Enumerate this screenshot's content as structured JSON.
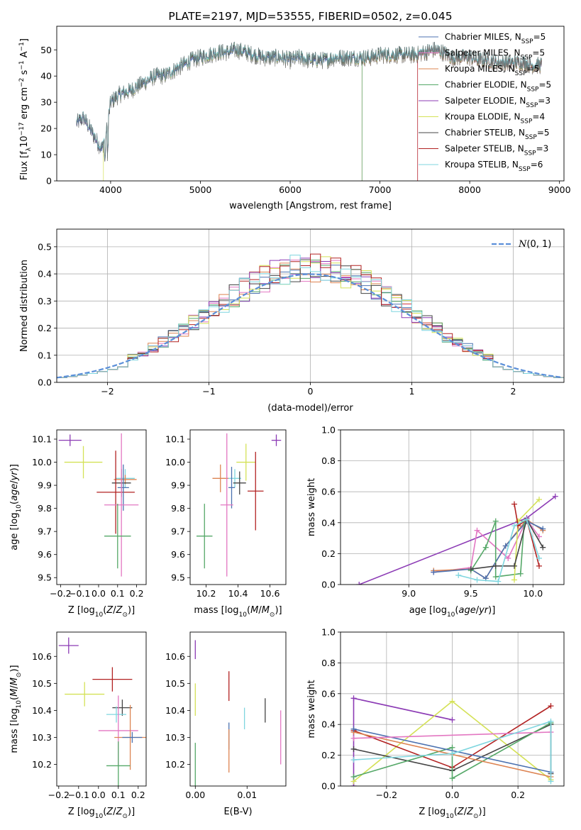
{
  "colors": {
    "Chabrier MILES": "#4c72b0",
    "Salpeter MILES": "#e377c2",
    "Kroupa MILES": "#dd8452",
    "Chabrier ELODIE": "#55a868",
    "Salpeter ELODIE": "#8c3bb5",
    "Kroupa ELODIE": "#d4e157",
    "Chabrier STELIB": "#444444",
    "Salpeter STELIB": "#b22222",
    "Kroupa STELIB": "#7fd6df",
    "normal": "#5b8fd9"
  },
  "chart_data": [
    {
      "id": "spectrum",
      "type": "line",
      "title": "PLATE=2197, MJD=53555, FIBERID=0502, z=0.045",
      "xlabel": "wavelength [Angstrom, rest frame]",
      "ylabel": "Flux [f_λ10^-17 erg cm^-2 s^-1 A^-1]",
      "xlim": [
        3400,
        9050
      ],
      "ylim": [
        0,
        59
      ],
      "xticks": [
        4000,
        5000,
        6000,
        7000,
        8000,
        9000
      ],
      "yticks": [
        0,
        10,
        20,
        30,
        40,
        50
      ],
      "x": [
        3620,
        3700,
        3800,
        3900,
        3960,
        4000,
        4100,
        4200,
        4300,
        4400,
        4500,
        4600,
        4700,
        4800,
        4900,
        5000,
        5100,
        5200,
        5300,
        5400,
        5500,
        5600,
        5700,
        5800,
        5900,
        6000,
        6100,
        6200,
        6300,
        6400,
        6500,
        6600,
        6700,
        6800,
        6900,
        7000,
        7100,
        7200,
        7300,
        7400,
        7500,
        7600,
        7700,
        7800,
        7900,
        8000,
        8100,
        8200,
        8300,
        8400,
        8500,
        8600,
        8700,
        8800
      ],
      "series": [
        {
          "name": "Chabrier MILES, N_SSP=5",
          "legend_prefix": "Chabrier MILES, N",
          "legend_sub": "SSP",
          "legend_suffix": "=5"
        },
        {
          "name": "Salpeter MILES, N_SSP=5",
          "legend_prefix": "Salpeter MILES, N",
          "legend_sub": "SSP",
          "legend_suffix": "=5"
        },
        {
          "name": "Kroupa MILES, N_SSP=5",
          "legend_prefix": "Kroupa MILES, N",
          "legend_sub": "SSP",
          "legend_suffix": "=5"
        },
        {
          "name": "Chabrier ELODIE, N_SSP=5",
          "legend_prefix": "Chabrier ELODIE, N",
          "legend_sub": "SSP",
          "legend_suffix": "=5"
        },
        {
          "name": "Salpeter ELODIE, N_SSP=3",
          "legend_prefix": "Salpeter ELODIE, N",
          "legend_sub": "SSP",
          "legend_suffix": "=3"
        },
        {
          "name": "Kroupa ELODIE, N_SSP=4",
          "legend_prefix": "Kroupa ELODIE, N",
          "legend_sub": "SSP",
          "legend_suffix": "=4"
        },
        {
          "name": "Chabrier STELIB, N_SSP=5",
          "legend_prefix": "Chabrier STELIB, N",
          "legend_sub": "SSP",
          "legend_suffix": "=5"
        },
        {
          "name": "Salpeter STELIB, N_SSP=3",
          "legend_prefix": "Salpeter STELIB, N",
          "legend_sub": "SSP",
          "legend_suffix": "=3"
        },
        {
          "name": "Kroupa STELIB, N_SSP=6",
          "legend_prefix": "Kroupa STELIB, N",
          "legend_sub": "SSP",
          "legend_suffix": "=6"
        }
      ],
      "flux_envelope": [
        22,
        24,
        18,
        12,
        20,
        30,
        33,
        34,
        36,
        38,
        40,
        40,
        42,
        44,
        46,
        47,
        48,
        49,
        49,
        50,
        49,
        48,
        47,
        47,
        47,
        46,
        47,
        46,
        46,
        46,
        47,
        47,
        47,
        47,
        47,
        48,
        48,
        48,
        48,
        48,
        49,
        50,
        49,
        47,
        47,
        47,
        46,
        46,
        45,
        45,
        45,
        45,
        44,
        44
      ],
      "model_start": {
        "Kroupa ELODIE": 3920,
        "Chabrier ELODIE": 6800,
        "Kroupa MILES": 6800,
        "Salpeter MILES": 7420,
        "Salpeter STELIB": 7420
      },
      "data_start": 3620,
      "data_end": 8800
    },
    {
      "id": "residuals",
      "type": "histogram",
      "xlabel": "(data-model)/error",
      "ylabel": "Normed distribution",
      "xlim": [
        -2.5,
        2.5
      ],
      "ylim": [
        0,
        0.565
      ],
      "xticks": [
        -2,
        -1,
        0,
        1,
        2
      ],
      "yticks": [
        0.0,
        0.1,
        0.2,
        0.3,
        0.4,
        0.5
      ],
      "grid": true,
      "bin_width": 0.1,
      "legend": "N(0,1)",
      "legend_text": "(0, 1)",
      "legend_position": "upper right"
    },
    {
      "id": "age_vs_Z",
      "type": "errorbar",
      "xlabel": "Z [log10(Z/Z_sun)]",
      "ylabel": "age [log10(age/yr)]",
      "xlim": [
        -0.22,
        0.25
      ],
      "ylim": [
        9.47,
        10.14
      ],
      "xticks": [
        -0.2,
        -0.1,
        0.0,
        0.1,
        0.2
      ],
      "yticks": [
        9.5,
        9.6,
        9.7,
        9.8,
        9.9,
        10.0,
        10.1
      ],
      "points": [
        {
          "s": "Salpeter ELODIE",
          "x": -0.15,
          "y": 10.095,
          "xe": 0.06,
          "ye": 0.025
        },
        {
          "s": "Kroupa ELODIE",
          "x": -0.08,
          "y": 10.0,
          "xe": 0.1,
          "ye": 0.07
        },
        {
          "s": "Kroupa STELIB",
          "x": 0.14,
          "y": 9.93,
          "xe": 0.05,
          "ye": 0.04
        },
        {
          "s": "Kroupa MILES",
          "x": 0.14,
          "y": 9.925,
          "xe": 0.06,
          "ye": 0.02
        },
        {
          "s": "Chabrier STELIB",
          "x": 0.12,
          "y": 9.91,
          "xe": 0.05,
          "ye": 0.06
        },
        {
          "s": "Salpeter STELIB",
          "x": 0.09,
          "y": 9.87,
          "xe": 0.1,
          "ye": 0.18
        },
        {
          "s": "Chabrier MILES",
          "x": 0.13,
          "y": 9.89,
          "xe": 0.03,
          "ye": 0.1
        },
        {
          "s": "Salpeter MILES",
          "x": 0.12,
          "y": 9.815,
          "xe": 0.09,
          "ye": 0.31
        },
        {
          "s": "Chabrier ELODIE",
          "x": 0.1,
          "y": 9.68,
          "xe": 0.07,
          "ye": 0.14
        }
      ]
    },
    {
      "id": "age_vs_mass",
      "type": "errorbar",
      "xlabel": "mass [log10(M/M_sun)]",
      "ylabel": "",
      "xlim": [
        10.1,
        10.7
      ],
      "ylim": [
        9.47,
        10.14
      ],
      "xticks": [
        10.2,
        10.4,
        10.6
      ],
      "yticks": [
        9.5,
        9.6,
        9.7,
        9.8,
        9.9,
        10.0,
        10.1
      ],
      "points": [
        {
          "s": "Salpeter ELODIE",
          "x": 10.64,
          "y": 10.095,
          "xe": 0.03,
          "ye": 0.025
        },
        {
          "s": "Kroupa ELODIE",
          "x": 10.45,
          "y": 10.0,
          "xe": 0.06,
          "ye": 0.08
        },
        {
          "s": "Kroupa STELIB",
          "x": 10.38,
          "y": 9.93,
          "xe": 0.04,
          "ye": 0.04
        },
        {
          "s": "Kroupa MILES",
          "x": 10.29,
          "y": 9.93,
          "xe": 0.05,
          "ye": 0.06
        },
        {
          "s": "Chabrier STELIB",
          "x": 10.41,
          "y": 9.91,
          "xe": 0.04,
          "ye": 0.05
        },
        {
          "s": "Salpeter STELIB",
          "x": 10.51,
          "y": 9.875,
          "xe": 0.05,
          "ye": 0.17
        },
        {
          "s": "Chabrier MILES",
          "x": 10.36,
          "y": 9.89,
          "xe": 0.02,
          "ye": 0.09
        },
        {
          "s": "Salpeter MILES",
          "x": 10.33,
          "y": 9.815,
          "xe": 0.04,
          "ye": 0.31
        },
        {
          "s": "Chabrier ELODIE",
          "x": 10.19,
          "y": 9.68,
          "xe": 0.05,
          "ye": 0.14
        }
      ]
    },
    {
      "id": "weight_vs_age",
      "type": "line",
      "xlabel": "age [log10(age/yr)]",
      "ylabel": "mass weight",
      "xlim": [
        8.45,
        10.25
      ],
      "ylim": [
        0,
        1.0
      ],
      "xticks": [
        9.0,
        9.5,
        10.0
      ],
      "yticks": [
        0.0,
        0.2,
        0.4,
        0.6,
        0.8,
        1.0
      ],
      "grid": true,
      "series": [
        {
          "s": "Salpeter ELODIE",
          "x": [
            8.6,
            9.95,
            10.18
          ],
          "y": [
            0.0,
            0.43,
            0.57
          ]
        },
        {
          "s": "Salpeter MILES",
          "x": [
            9.2,
            9.5,
            9.55,
            9.8,
            9.95,
            10.05
          ],
          "y": [
            0.08,
            0.11,
            0.35,
            0.17,
            0.42,
            0.31
          ]
        },
        {
          "s": "Kroupa MILES",
          "x": [
            9.2,
            9.5,
            9.62,
            9.78,
            9.95,
            10.08
          ],
          "y": [
            0.09,
            0.1,
            0.04,
            0.25,
            0.42,
            0.35
          ]
        },
        {
          "s": "Chabrier MILES",
          "x": [
            9.2,
            9.5,
            9.62,
            9.78,
            9.95,
            10.08
          ],
          "y": [
            0.08,
            0.1,
            0.04,
            0.25,
            0.41,
            0.36
          ]
        },
        {
          "s": "Chabrier ELODIE",
          "x": [
            9.5,
            9.62,
            9.7,
            9.7,
            9.9,
            9.93
          ],
          "y": [
            0.09,
            0.24,
            0.41,
            0.05,
            0.07,
            0.41
          ]
        },
        {
          "s": "Kroupa ELODIE",
          "x": [
            9.85,
            9.88,
            10.05
          ],
          "y": [
            0.03,
            0.41,
            0.55
          ]
        },
        {
          "s": "Chabrier STELIB",
          "x": [
            9.5,
            9.7,
            9.85,
            9.95,
            10.08
          ],
          "y": [
            0.1,
            0.12,
            0.12,
            0.42,
            0.24
          ]
        },
        {
          "s": "Salpeter STELIB",
          "x": [
            9.85,
            9.88,
            9.95,
            10.05
          ],
          "y": [
            0.52,
            0.38,
            0.42,
            0.12
          ]
        },
        {
          "s": "Kroupa STELIB",
          "x": [
            9.4,
            9.55,
            9.72,
            9.85,
            9.95,
            10.05
          ],
          "y": [
            0.06,
            0.03,
            0.02,
            0.38,
            0.42,
            0.17
          ]
        }
      ]
    },
    {
      "id": "mass_vs_Z",
      "type": "errorbar",
      "xlabel": "Z [log10(Z/Z_sun)]",
      "ylabel": "mass [log10(M/M_sun)]",
      "xlim": [
        -0.21,
        0.24
      ],
      "ylim": [
        10.12,
        10.69
      ],
      "xticks": [
        -0.2,
        -0.1,
        0.0,
        0.1,
        0.2
      ],
      "yticks": [
        10.2,
        10.3,
        10.4,
        10.5,
        10.6
      ],
      "points": [
        {
          "s": "Salpeter ELODIE",
          "x": -0.15,
          "y": 10.64,
          "xe": 0.05,
          "ye": 0.03
        },
        {
          "s": "Salpeter STELIB",
          "x": 0.07,
          "y": 10.515,
          "xe": 0.1,
          "ye": 0.045
        },
        {
          "s": "Kroupa ELODIE",
          "x": -0.07,
          "y": 10.46,
          "xe": 0.1,
          "ye": 0.045
        },
        {
          "s": "Chabrier STELIB",
          "x": 0.12,
          "y": 10.41,
          "xe": 0.05,
          "ye": 0.03
        },
        {
          "s": "Kroupa STELIB",
          "x": 0.09,
          "y": 10.385,
          "xe": 0.05,
          "ye": 0.03
        },
        {
          "s": "Salpeter MILES",
          "x": 0.1,
          "y": 10.325,
          "xe": 0.1,
          "ye": 0.13
        },
        {
          "s": "Kroupa MILES",
          "x": 0.16,
          "y": 10.3,
          "xe": 0.08,
          "ye": 0.12
        },
        {
          "s": "Chabrier MILES",
          "x": 0.17,
          "y": 10.3,
          "xe": 0.05,
          "ye": 0.02
        },
        {
          "s": "Chabrier ELODIE",
          "x": 0.1,
          "y": 10.195,
          "xe": 0.06,
          "ye": 0.09
        }
      ]
    },
    {
      "id": "mass_vs_EBV",
      "type": "errorbar",
      "xlabel": "E(B-V)",
      "ylabel": "",
      "xlim": [
        -0.001,
        0.0175
      ],
      "ylim": [
        10.12,
        10.69
      ],
      "xticks": [
        0.0,
        0.01
      ],
      "yticks": [
        10.2,
        10.3,
        10.4,
        10.5,
        10.6
      ],
      "points": [
        {
          "s": "Salpeter ELODIE",
          "x": 0.0,
          "y": 10.625,
          "xe": 0,
          "ye": 0.035
        },
        {
          "s": "Kroupa ELODIE",
          "x": 0.0,
          "y": 10.44,
          "xe": 0,
          "ye": 0.06
        },
        {
          "s": "Chabrier ELODIE",
          "x": 0.0,
          "y": 10.19,
          "xe": 0,
          "ye": 0.09
        },
        {
          "s": "Salpeter STELIB",
          "x": 0.0065,
          "y": 10.49,
          "xe": 0,
          "ye": 0.055
        },
        {
          "s": "Chabrier MILES",
          "x": 0.0065,
          "y": 10.305,
          "xe": 0,
          "ye": 0.05
        },
        {
          "s": "Kroupa MILES",
          "x": 0.0065,
          "y": 10.25,
          "xe": 0,
          "ye": 0.08
        },
        {
          "s": "Kroupa STELIB",
          "x": 0.0095,
          "y": 10.37,
          "xe": 0,
          "ye": 0.04
        },
        {
          "s": "Chabrier STELIB",
          "x": 0.0135,
          "y": 10.4,
          "xe": 0,
          "ye": 0.045
        },
        {
          "s": "Salpeter MILES",
          "x": 0.0165,
          "y": 10.3,
          "xe": 0,
          "ye": 0.1
        }
      ]
    },
    {
      "id": "weight_vs_Z",
      "type": "line",
      "xlabel": "Z [log10(Z/Z_sun)]",
      "ylabel": "mass weight",
      "xlim": [
        -0.34,
        0.34
      ],
      "ylim": [
        0,
        1.0
      ],
      "xticks": [
        -0.2,
        0.0,
        0.2
      ],
      "yticks": [
        0.0,
        0.2,
        0.4,
        0.6,
        0.8,
        1.0
      ],
      "grid": true,
      "series": [
        {
          "s": "Salpeter ELODIE",
          "x": [
            -0.3,
            -0.3,
            0.0
          ],
          "y": [
            0.0,
            0.57,
            0.43
          ]
        },
        {
          "s": "Kroupa ELODIE",
          "x": [
            -0.3,
            0.0,
            0.3
          ],
          "y": [
            0.03,
            0.55,
            0.04
          ]
        },
        {
          "s": "Salpeter STELIB",
          "x": [
            -0.3,
            0.0,
            0.3
          ],
          "y": [
            0.36,
            0.12,
            0.52
          ]
        },
        {
          "s": "Chabrier STELIB",
          "x": [
            -0.3,
            0.0,
            0.3,
            0.3
          ],
          "y": [
            0.24,
            0.1,
            0.4,
            0.08
          ]
        },
        {
          "s": "Chabrier ELODIE",
          "x": [
            -0.3,
            0.0,
            0.0,
            0.3
          ],
          "y": [
            0.06,
            0.25,
            0.05,
            0.41
          ]
        },
        {
          "s": "Kroupa MILES",
          "x": [
            -0.3,
            0.3
          ],
          "y": [
            0.35,
            0.06
          ]
        },
        {
          "s": "Chabrier MILES",
          "x": [
            -0.3,
            0.3
          ],
          "y": [
            0.37,
            0.09
          ]
        },
        {
          "s": "Salpeter MILES",
          "x": [
            -0.3,
            0.3
          ],
          "y": [
            0.31,
            0.35
          ]
        },
        {
          "s": "Kroupa STELIB",
          "x": [
            -0.3,
            0.0,
            0.3,
            0.3
          ],
          "y": [
            0.17,
            0.21,
            0.42,
            0.03
          ]
        }
      ]
    }
  ]
}
